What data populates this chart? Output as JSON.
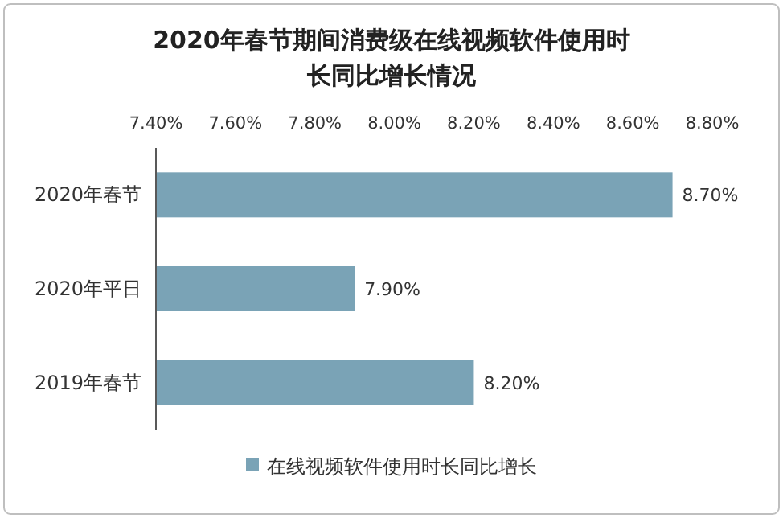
{
  "chart_data": {
    "type": "bar",
    "orientation": "horizontal",
    "title": "2020年春节期间消费级在线视频软件使用时长同比增长情况",
    "categories": [
      "2020年春节",
      "2020年平日",
      "2019年春节"
    ],
    "series": [
      {
        "name": "在线视频软件使用时长同比增长",
        "color": "#7aa3b6",
        "values": [
          8.7,
          7.9,
          8.2
        ],
        "value_labels": [
          "8.70%",
          "7.90%",
          "8.20%"
        ]
      }
    ],
    "xlim": [
      7.4,
      8.8
    ],
    "xticks": [
      {
        "value": 7.4,
        "label": "7.40%"
      },
      {
        "value": 7.6,
        "label": "7.60%"
      },
      {
        "value": 7.8,
        "label": "7.80%"
      },
      {
        "value": 8.0,
        "label": "8.00%"
      },
      {
        "value": 8.2,
        "label": "8.20%"
      },
      {
        "value": 8.4,
        "label": "8.40%"
      },
      {
        "value": 8.6,
        "label": "8.60%"
      },
      {
        "value": 8.8,
        "label": "8.80%"
      }
    ],
    "legend": "bottom",
    "grid": false
  }
}
